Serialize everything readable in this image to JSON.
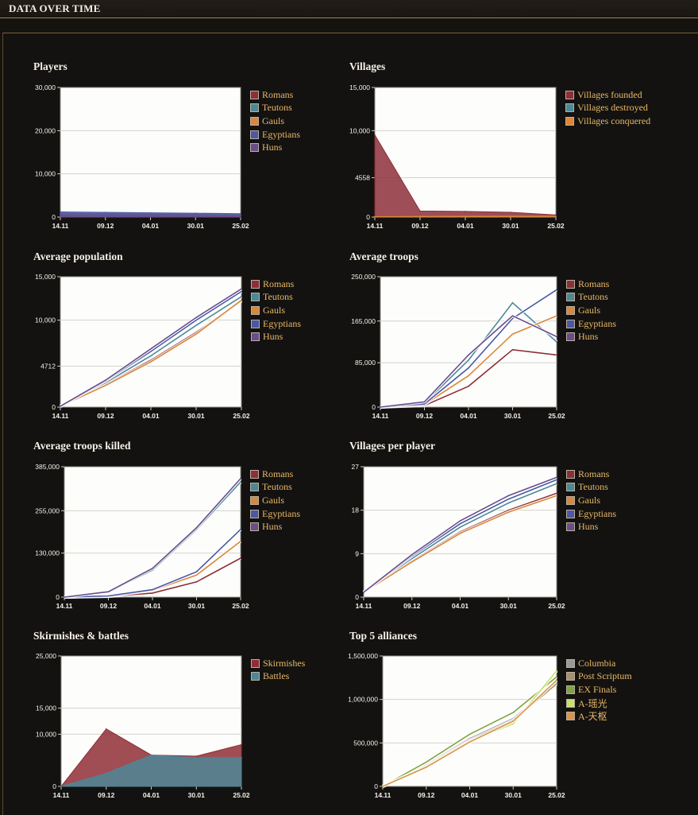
{
  "header": {
    "title": "DATA OVER TIME"
  },
  "colors": {
    "Romans": "#8d2f38",
    "Teutons": "#4d8896",
    "Gauls": "#d9873a",
    "Egyptians": "#4a58a5",
    "Huns": "#6a4d8a",
    "Villages founded": "#8d2f38",
    "Villages destroyed": "#4d8896",
    "Villages conquered": "#d9873a",
    "Skirmishes": "#8f2e36",
    "Battles": "#4e8797",
    "Columbia": "#9a9a9a",
    "Post Scriptum": "#a59170",
    "EX Finals": "#80a242",
    "A-瑶光": "#c8e070",
    "A-天枢": "#d8944a"
  },
  "chart_data": [
    {
      "id": "players",
      "type": "area",
      "title": "Players",
      "x": [
        "14.11",
        "09.12",
        "04.01",
        "30.01",
        "25.02"
      ],
      "ylim": [
        0,
        30000
      ],
      "yticks": [
        "0",
        "10,000",
        "20,000",
        "30,000"
      ],
      "series": [
        {
          "name": "Romans",
          "values": [
            800,
            750,
            700,
            620,
            500
          ]
        },
        {
          "name": "Teutons",
          "values": [
            700,
            650,
            600,
            540,
            450
          ]
        },
        {
          "name": "Gauls",
          "values": [
            600,
            560,
            520,
            470,
            400
          ]
        },
        {
          "name": "Egyptians",
          "values": [
            1200,
            1100,
            1000,
            900,
            800
          ]
        },
        {
          "name": "Huns",
          "values": [
            400,
            380,
            350,
            320,
            280
          ]
        }
      ]
    },
    {
      "id": "villages",
      "type": "area",
      "title": "Villages",
      "x": [
        "14.11",
        "09.12",
        "04.01",
        "30.01",
        "25.02"
      ],
      "ylim": [
        0,
        15000
      ],
      "yticks": [
        "0",
        "4558",
        "10,000",
        "15,000"
      ],
      "series": [
        {
          "name": "Villages founded",
          "values": [
            9500,
            700,
            650,
            550,
            250
          ]
        },
        {
          "name": "Villages destroyed",
          "values": [
            20,
            40,
            50,
            60,
            70
          ]
        },
        {
          "name": "Villages conquered",
          "values": [
            50,
            80,
            90,
            100,
            90
          ]
        }
      ]
    },
    {
      "id": "avgpop",
      "type": "line",
      "title": "Average population",
      "x": [
        "14.11",
        "09.12",
        "04.01",
        "30.01",
        "25.02"
      ],
      "ylim": [
        0,
        15000
      ],
      "yticks": [
        "0",
        "4712",
        "10,000",
        "15,000"
      ],
      "series": [
        {
          "name": "Romans",
          "values": [
            100,
            2600,
            5400,
            8600,
            12200
          ]
        },
        {
          "name": "Teutons",
          "values": [
            100,
            2800,
            5900,
            9400,
            12700
          ]
        },
        {
          "name": "Gauls",
          "values": [
            100,
            2500,
            5200,
            8400,
            12300
          ]
        },
        {
          "name": "Egyptians",
          "values": [
            100,
            3000,
            6400,
            10000,
            13300
          ]
        },
        {
          "name": "Huns",
          "values": [
            100,
            3100,
            6700,
            10300,
            13600
          ]
        }
      ]
    },
    {
      "id": "avgtroops",
      "type": "line",
      "title": "Average troops",
      "x": [
        "14.11",
        "09.12",
        "04.01",
        "30.01",
        "25.02"
      ],
      "ylim": [
        0,
        250000
      ],
      "yticks": [
        "0",
        "85,000",
        "165,000",
        "250,000"
      ],
      "series": [
        {
          "name": "Romans",
          "values": [
            0,
            3000,
            40000,
            110000,
            100000
          ]
        },
        {
          "name": "Teutons",
          "values": [
            0,
            8000,
            90000,
            200000,
            125000
          ]
        },
        {
          "name": "Gauls",
          "values": [
            0,
            5000,
            60000,
            140000,
            175000
          ]
        },
        {
          "name": "Egyptians",
          "values": [
            0,
            6000,
            75000,
            170000,
            225000
          ]
        },
        {
          "name": "Huns",
          "values": [
            0,
            10000,
            100000,
            175000,
            135000
          ]
        }
      ]
    },
    {
      "id": "killed",
      "type": "line",
      "title": "Average troops killed",
      "x": [
        "14.11",
        "09.12",
        "04.01",
        "30.01",
        "25.02"
      ],
      "ylim": [
        0,
        385000
      ],
      "yticks": [
        "0",
        "130,000",
        "255,000",
        "385,000"
      ],
      "series": [
        {
          "name": "Romans",
          "values": [
            0,
            2000,
            12000,
            45000,
            115000
          ]
        },
        {
          "name": "Teutons",
          "values": [
            0,
            15000,
            80000,
            200000,
            340000
          ]
        },
        {
          "name": "Gauls",
          "values": [
            0,
            3000,
            20000,
            65000,
            165000
          ]
        },
        {
          "name": "Egyptians",
          "values": [
            0,
            3500,
            22000,
            75000,
            200000
          ]
        },
        {
          "name": "Huns",
          "values": [
            0,
            16000,
            85000,
            205000,
            350000
          ]
        }
      ]
    },
    {
      "id": "vpp",
      "type": "line",
      "title": "Villages per player",
      "x": [
        "14.11",
        "09.12",
        "04.01",
        "30.01",
        "25.02"
      ],
      "ylim": [
        0,
        27
      ],
      "yticks": [
        "0",
        "9",
        "18",
        "27"
      ],
      "series": [
        {
          "name": "Romans",
          "values": [
            1,
            7.5,
            13.5,
            18,
            21.5
          ]
        },
        {
          "name": "Teutons",
          "values": [
            1,
            8,
            14.5,
            19.5,
            23.5
          ]
        },
        {
          "name": "Gauls",
          "values": [
            1,
            7.3,
            13.2,
            17.6,
            21
          ]
        },
        {
          "name": "Egyptians",
          "values": [
            1,
            8.5,
            15.2,
            20.3,
            24.3
          ]
        },
        {
          "name": "Huns",
          "values": [
            1,
            8.8,
            15.8,
            21,
            24.8
          ]
        }
      ]
    },
    {
      "id": "skirm",
      "type": "area",
      "title": "Skirmishes & battles",
      "x": [
        "14.11",
        "09.12",
        "04.01",
        "30.01",
        "25.02"
      ],
      "ylim": [
        0,
        25000
      ],
      "yticks": [
        "0",
        "10,000",
        "15,000",
        "25,000"
      ],
      "series": [
        {
          "name": "Skirmishes",
          "values": [
            0,
            11000,
            6000,
            5800,
            8000
          ]
        },
        {
          "name": "Battles",
          "values": [
            0,
            2500,
            6000,
            5500,
            5500
          ]
        }
      ]
    },
    {
      "id": "top5",
      "type": "line",
      "title": "Top 5 alliances",
      "x": [
        "14.11",
        "09.12",
        "04.01",
        "30.01",
        "25.02"
      ],
      "ylim": [
        0,
        1500000
      ],
      "yticks": [
        "0",
        "500,000",
        "1,000,000",
        "1,500,000"
      ],
      "series": [
        {
          "name": "Columbia",
          "values": [
            0,
            250000,
            550000,
            780000,
            1200000
          ]
        },
        {
          "name": "Post Scriptum",
          "values": [
            0,
            240000,
            530000,
            760000,
            1180000
          ]
        },
        {
          "name": "EX Finals",
          "values": [
            0,
            280000,
            600000,
            850000,
            1260000
          ]
        },
        {
          "name": "A-瑶光",
          "values": [
            0,
            230000,
            520000,
            720000,
            1330000
          ]
        },
        {
          "name": "A-天枢",
          "values": [
            0,
            220000,
            510000,
            750000,
            1220000
          ]
        }
      ]
    }
  ]
}
